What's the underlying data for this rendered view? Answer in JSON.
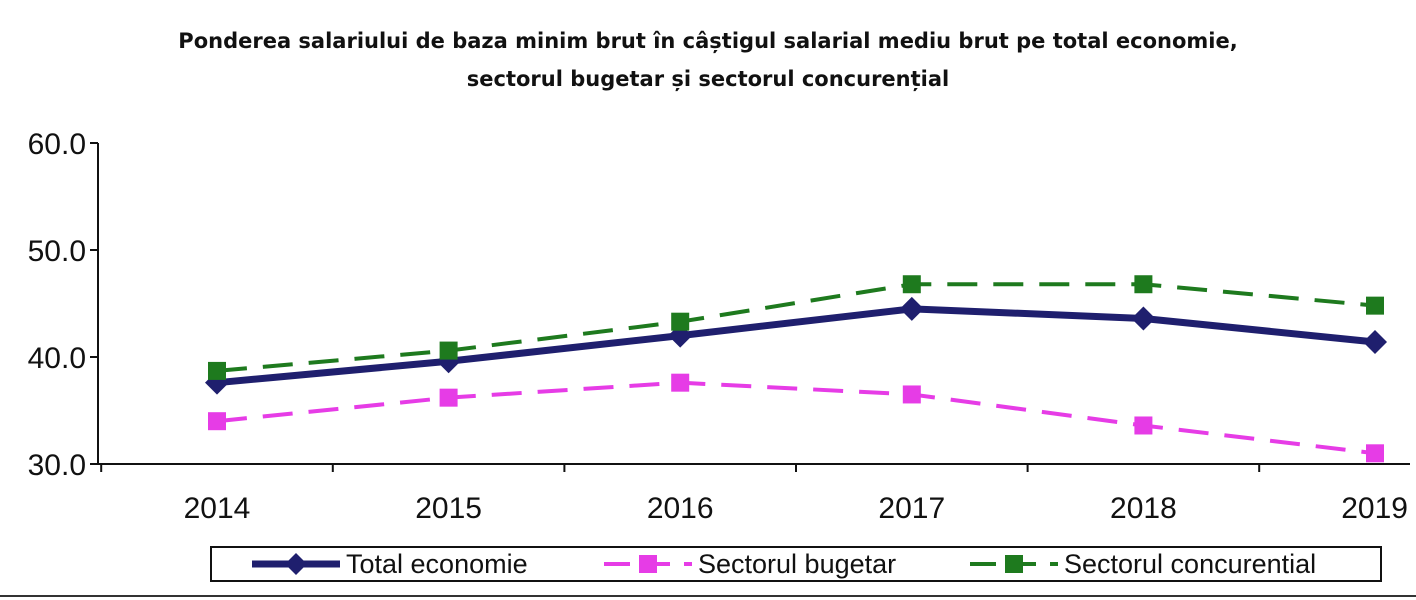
{
  "chart_data": {
    "type": "line",
    "title_lines": [
      "Ponderea salariului de baza minim brut în câștigul salarial mediu brut pe total economie,",
      "sectorul bugetar și sectorul concurențial"
    ],
    "xlabel": "",
    "ylabel": "",
    "categories": [
      "2014",
      "2015",
      "2016",
      "2017",
      "2018",
      "2019"
    ],
    "ylim": [
      30.0,
      60.0
    ],
    "yticks": [
      "30.0",
      "40.0",
      "50.0",
      "60.0"
    ],
    "grid": false,
    "legend_position": "bottom",
    "series": [
      {
        "name": "Total economie",
        "values": [
          37.6,
          39.6,
          42.0,
          44.5,
          43.6,
          41.4
        ],
        "color": "#1f1f6e",
        "line_style": "solid",
        "marker": "diamond"
      },
      {
        "name": "Sectorul bugetar",
        "values": [
          34.0,
          36.2,
          37.6,
          36.5,
          33.6,
          31.0
        ],
        "color": "#e63ce6",
        "line_style": "dashed",
        "marker": "square"
      },
      {
        "name": "Sectorul concurential",
        "values": [
          38.7,
          40.6,
          43.3,
          46.8,
          46.8,
          44.8
        ],
        "color": "#1e7a1e",
        "line_style": "dashed",
        "marker": "square"
      }
    ]
  }
}
